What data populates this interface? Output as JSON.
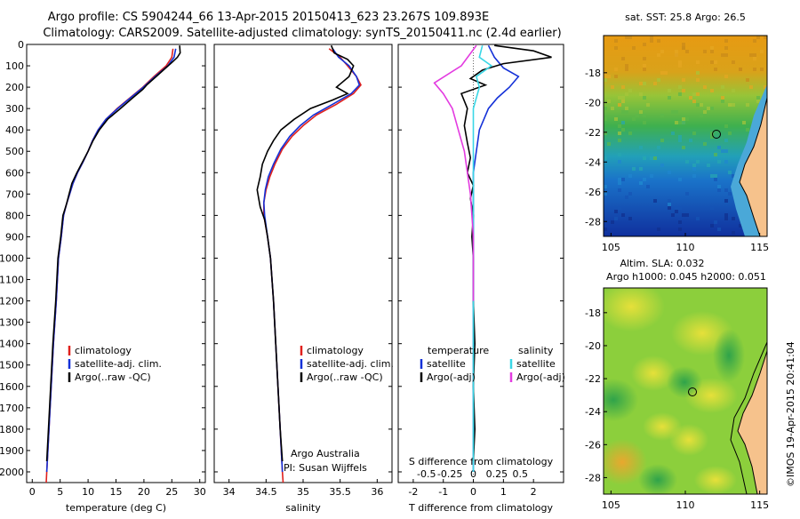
{
  "header": {
    "line1": "Argo profile: CS 5904244_66 13-Apr-2015 20150413_623 23.267S 109.893E",
    "line2": "Climatology: CARS2009. Satellite-adjusted climatology: synTS_20150411.nc (2.4d earlier)"
  },
  "credit": "Argo Australia",
  "pi": "PI: Susan Wijffels",
  "watermark": "©IMOS 19-Apr-2015 20:41:04",
  "colors": {
    "climatology": "#e0201c",
    "satellite": "#1431d8",
    "argo": "#000000",
    "sat_salinity": "#3ad7e6",
    "argo_salinity": "#e33be0"
  },
  "chart_data": [
    {
      "type": "line",
      "id": "temperature",
      "xlabel": "temperature (deg C)",
      "ylabel": "",
      "ylim": [
        2050,
        0
      ],
      "xlim": [
        -1,
        31
      ],
      "y_ticks": [
        0,
        100,
        200,
        300,
        400,
        500,
        600,
        700,
        800,
        900,
        1000,
        1100,
        1200,
        1300,
        1400,
        1500,
        1600,
        1700,
        1800,
        1900,
        2000
      ],
      "x_ticks": [
        0,
        5,
        10,
        15,
        20,
        25,
        30
      ],
      "legend": [
        "climatology",
        "satellite-adj. clim.",
        "Argo(..raw -QC)"
      ],
      "legend_position": "bottom-right",
      "series": [
        {
          "name": "climatology",
          "color_key": "climatology",
          "points": [
            [
              25.2,
              20
            ],
            [
              25.0,
              60
            ],
            [
              24.0,
              100
            ],
            [
              21.8,
              150
            ],
            [
              19.8,
              200
            ],
            [
              17.5,
              250
            ],
            [
              15.2,
              300
            ],
            [
              13.2,
              350
            ],
            [
              11.8,
              400
            ],
            [
              10.8,
              450
            ],
            [
              10.0,
              500
            ],
            [
              9.1,
              550
            ],
            [
              8.1,
              600
            ],
            [
              7.3,
              650
            ],
            [
              6.7,
              700
            ],
            [
              6.1,
              750
            ],
            [
              5.6,
              800
            ],
            [
              5.2,
              900
            ],
            [
              4.7,
              1000
            ],
            [
              4.3,
              1200
            ],
            [
              3.8,
              1400
            ],
            [
              3.4,
              1600
            ],
            [
              3.0,
              1800
            ],
            [
              2.6,
              2000
            ],
            [
              2.5,
              2050
            ]
          ]
        },
        {
          "name": "satellite-adj. clim.",
          "color_key": "satellite",
          "points": [
            [
              25.7,
              20
            ],
            [
              25.4,
              60
            ],
            [
              24.3,
              100
            ],
            [
              22.0,
              150
            ],
            [
              19.9,
              200
            ],
            [
              17.6,
              250
            ],
            [
              15.3,
              300
            ],
            [
              13.2,
              350
            ],
            [
              11.8,
              400
            ],
            [
              10.8,
              450
            ],
            [
              10.0,
              500
            ],
            [
              9.1,
              550
            ],
            [
              8.1,
              600
            ],
            [
              7.3,
              650
            ],
            [
              6.7,
              700
            ],
            [
              6.1,
              750
            ],
            [
              5.6,
              800
            ],
            [
              5.2,
              900
            ],
            [
              4.7,
              1000
            ],
            [
              4.3,
              1200
            ],
            [
              3.8,
              1400
            ],
            [
              3.4,
              1600
            ],
            [
              3.0,
              1800
            ],
            [
              2.6,
              2000
            ]
          ]
        },
        {
          "name": "Argo(..raw -QC)",
          "color_key": "argo",
          "points": [
            [
              26.4,
              5
            ],
            [
              26.5,
              40
            ],
            [
              26.0,
              60
            ],
            [
              25.2,
              80
            ],
            [
              23.9,
              110
            ],
            [
              22.2,
              150
            ],
            [
              20.5,
              190
            ],
            [
              19.8,
              210
            ],
            [
              18.0,
              250
            ],
            [
              15.8,
              300
            ],
            [
              13.5,
              350
            ],
            [
              12.0,
              400
            ],
            [
              10.9,
              450
            ],
            [
              10.0,
              500
            ],
            [
              9.0,
              550
            ],
            [
              8.0,
              600
            ],
            [
              7.1,
              650
            ],
            [
              6.6,
              700
            ],
            [
              6.1,
              750
            ],
            [
              5.5,
              800
            ],
            [
              5.1,
              900
            ],
            [
              4.6,
              1000
            ],
            [
              4.2,
              1200
            ],
            [
              3.7,
              1400
            ],
            [
              3.3,
              1600
            ],
            [
              2.9,
              1800
            ],
            [
              2.6,
              1950
            ]
          ]
        }
      ]
    },
    {
      "type": "line",
      "id": "salinity",
      "xlabel": "salinity",
      "ylim": [
        2050,
        0
      ],
      "xlim": [
        33.8,
        36.2
      ],
      "x_ticks": [
        34,
        34.5,
        35,
        35.5,
        36
      ],
      "legend": [
        "climatology",
        "satellite-adj. clim.",
        "Argo(..raw -QC)"
      ],
      "legend_position": "bottom-right",
      "series": [
        {
          "name": "climatology",
          "color_key": "climatology",
          "points": [
            [
              35.35,
              20
            ],
            [
              35.5,
              60
            ],
            [
              35.6,
              100
            ],
            [
              35.72,
              150
            ],
            [
              35.78,
              190
            ],
            [
              35.68,
              230
            ],
            [
              35.45,
              280
            ],
            [
              35.18,
              330
            ],
            [
              35.0,
              380
            ],
            [
              34.85,
              430
            ],
            [
              34.72,
              490
            ],
            [
              34.62,
              560
            ],
            [
              34.55,
              620
            ],
            [
              34.5,
              680
            ],
            [
              34.47,
              740
            ],
            [
              34.47,
              800
            ],
            [
              34.52,
              900
            ],
            [
              34.56,
              1000
            ],
            [
              34.6,
              1200
            ],
            [
              34.63,
              1400
            ],
            [
              34.66,
              1600
            ],
            [
              34.69,
              1800
            ],
            [
              34.72,
              2000
            ],
            [
              34.73,
              2050
            ]
          ]
        },
        {
          "name": "satellite-adj. clim.",
          "color_key": "satellite",
          "points": [
            [
              35.4,
              20
            ],
            [
              35.48,
              60
            ],
            [
              35.62,
              100
            ],
            [
              35.72,
              150
            ],
            [
              35.76,
              190
            ],
            [
              35.65,
              230
            ],
            [
              35.4,
              280
            ],
            [
              35.14,
              330
            ],
            [
              34.96,
              380
            ],
            [
              34.82,
              430
            ],
            [
              34.7,
              490
            ],
            [
              34.6,
              560
            ],
            [
              34.53,
              620
            ],
            [
              34.49,
              680
            ],
            [
              34.47,
              740
            ],
            [
              34.48,
              800
            ],
            [
              34.52,
              900
            ],
            [
              34.56,
              1000
            ],
            [
              34.6,
              1200
            ],
            [
              34.63,
              1400
            ],
            [
              34.66,
              1600
            ],
            [
              34.69,
              1800
            ],
            [
              34.72,
              2000
            ]
          ]
        },
        {
          "name": "Argo(..raw -QC)",
          "color_key": "argo",
          "points": [
            [
              35.38,
              5
            ],
            [
              35.42,
              40
            ],
            [
              35.6,
              70
            ],
            [
              35.68,
              100
            ],
            [
              35.62,
              150
            ],
            [
              35.45,
              200
            ],
            [
              35.6,
              230
            ],
            [
              35.4,
              260
            ],
            [
              35.1,
              300
            ],
            [
              34.88,
              350
            ],
            [
              34.7,
              400
            ],
            [
              34.6,
              450
            ],
            [
              34.52,
              500
            ],
            [
              34.45,
              560
            ],
            [
              34.42,
              620
            ],
            [
              34.38,
              680
            ],
            [
              34.4,
              720
            ],
            [
              34.42,
              760
            ],
            [
              34.48,
              820
            ],
            [
              34.52,
              900
            ],
            [
              34.56,
              1000
            ],
            [
              34.6,
              1200
            ],
            [
              34.63,
              1400
            ],
            [
              34.66,
              1600
            ],
            [
              34.69,
              1800
            ],
            [
              34.72,
              1950
            ]
          ]
        }
      ]
    },
    {
      "type": "line",
      "id": "difference",
      "xlabel": "T difference from climatology",
      "xlabel_top": "S difference from climatology",
      "ylim": [
        2050,
        0
      ],
      "xlim": [
        -2.5,
        3
      ],
      "x_ticks": [
        -2,
        -1,
        0,
        1,
        2
      ],
      "x_ticks_top": [
        "-0.5",
        "-0.25",
        "0",
        "0.25",
        "0.5"
      ],
      "legend_left": [
        "temperature",
        "satellite",
        "Argo(-adj)"
      ],
      "legend_right": [
        "salinity",
        "satellite",
        "Argo(-adj)"
      ],
      "legend_position": "bottom-center",
      "series": [
        {
          "name": "satellite",
          "color_key": "satellite",
          "points": [
            [
              0.5,
              5
            ],
            [
              0.7,
              60
            ],
            [
              1.0,
              110
            ],
            [
              1.5,
              150
            ],
            [
              1.2,
              200
            ],
            [
              0.8,
              250
            ],
            [
              0.5,
              300
            ],
            [
              0.2,
              400
            ],
            [
              0.1,
              500
            ],
            [
              0.0,
              600
            ],
            [
              0.0,
              800
            ],
            [
              0.0,
              2000
            ]
          ]
        },
        {
          "name": "Argo(-adj)",
          "color_key": "argo",
          "points": [
            [
              0.7,
              5
            ],
            [
              2.0,
              30
            ],
            [
              2.6,
              60
            ],
            [
              1.0,
              90
            ],
            [
              0.3,
              120
            ],
            [
              -0.1,
              160
            ],
            [
              0.4,
              190
            ],
            [
              -0.4,
              230
            ],
            [
              -0.2,
              300
            ],
            [
              -0.3,
              380
            ],
            [
              -0.2,
              460
            ],
            [
              -0.1,
              530
            ],
            [
              -0.2,
              600
            ],
            [
              0.0,
              660
            ],
            [
              -0.1,
              720
            ],
            [
              0.0,
              800
            ],
            [
              -0.05,
              900
            ],
            [
              0.0,
              1000
            ],
            [
              0.0,
              1200
            ],
            [
              0.05,
              1400
            ],
            [
              0.0,
              1600
            ],
            [
              0.05,
              1800
            ],
            [
              0.0,
              1950
            ]
          ]
        },
        {
          "name": "salinity satellite",
          "color_key": "sat_salinity",
          "points": [
            [
              0.3,
              5
            ],
            [
              0.2,
              60
            ],
            [
              0.6,
              100
            ],
            [
              0.1,
              150
            ],
            [
              0.2,
              200
            ],
            [
              0.0,
              300
            ],
            [
              0.0,
              500
            ],
            [
              0.0,
              2000
            ]
          ]
        },
        {
          "name": "salinity Argo(-adj)",
          "color_key": "argo_salinity",
          "points": [
            [
              0.1,
              5
            ],
            [
              -0.4,
              100
            ],
            [
              -1.3,
              180
            ],
            [
              -1.0,
              230
            ],
            [
              -0.7,
              300
            ],
            [
              -0.5,
              400
            ],
            [
              -0.3,
              500
            ],
            [
              -0.2,
              600
            ],
            [
              -0.1,
              700
            ],
            [
              -0.05,
              800
            ],
            [
              0.0,
              900
            ],
            [
              0.0,
              1000
            ],
            [
              0.0,
              1200
            ]
          ]
        }
      ]
    },
    {
      "type": "heatmap",
      "id": "sst-map",
      "title": "sat. SST: 25.8  Argo: 26.5",
      "xlim": [
        104.5,
        115.5
      ],
      "ylim": [
        -29,
        -15.5
      ],
      "x_ticks": [
        105,
        110,
        115
      ],
      "y_ticks": [
        -18,
        -20,
        -22,
        -24,
        -26,
        -28
      ],
      "marker": [
        109.893,
        -23.267
      ]
    },
    {
      "type": "heatmap",
      "id": "sla-map",
      "title": "Altim. SLA: 0.032",
      "subtitle": "Argo h1000: 0.045 h2000: 0.051",
      "xlim": [
        104.5,
        115.5
      ],
      "ylim": [
        -29,
        -16.5
      ],
      "x_ticks": [
        105,
        110,
        115
      ],
      "y_ticks": [
        -18,
        -20,
        -22,
        -24,
        -26,
        -28
      ],
      "marker": [
        109.893,
        -23.267
      ]
    }
  ]
}
